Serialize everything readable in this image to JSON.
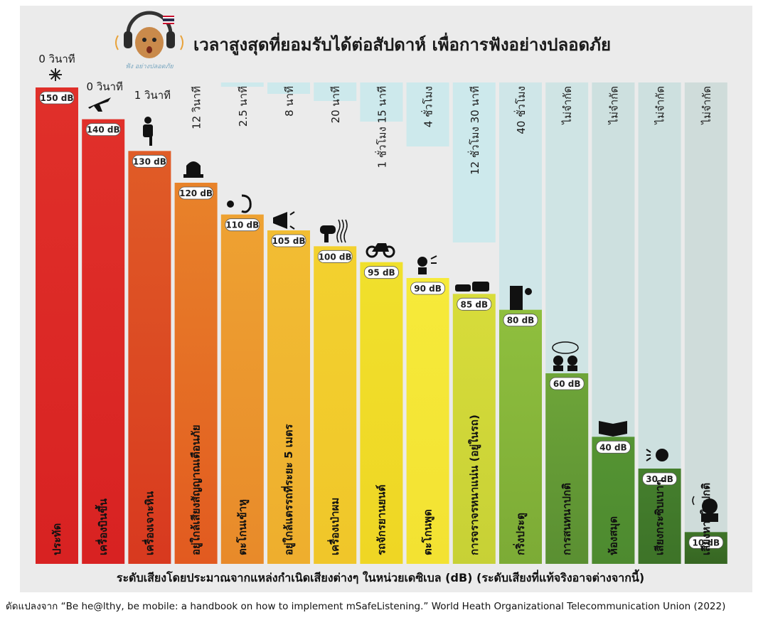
{
  "title": "เวลาสูงสุดที่ยอมรับได้ต่อสัปดาห์ เพื่อการฟังอย่างปลอดภัย",
  "logo_caption": "ฟัง อย่างปลอดภัย",
  "icons": [
    "fireworks-icon",
    "airplane-icon",
    "jackhammer-icon",
    "siren-icon",
    "shout-ear-icon",
    "megaphone-icon",
    "hairdryer-icon",
    "motorcycle-icon",
    "shout-icon",
    "cars-icon",
    "door-bell-icon",
    "two-people-talking-icon",
    "open-book-icon",
    "whisper-icon",
    "breathing-person-icon"
  ],
  "colors": {
    "bar_top": [
      "#e0302a",
      "#e0302a",
      "#e05c27",
      "#e8832a",
      "#eea232",
      "#f2bd33",
      "#f3d12f",
      "#f0e02c",
      "#f6ea3a",
      "#d8dc3a",
      "#8fbf3e",
      "#6ea539",
      "#559433",
      "#457f2d",
      "#3f7429"
    ],
    "bar_bottom": [
      "#d82222",
      "#d82222",
      "#d8391f",
      "#e25a20",
      "#e88a2a",
      "#eeae2e",
      "#f0c62a",
      "#efd624",
      "#f3e232",
      "#c7d136",
      "#7cab36",
      "#5a8f32",
      "#4d8a2f",
      "#3d7328",
      "#366622"
    ],
    "time_block": [
      "#cde9ec",
      "#cde9ec",
      "#cde9ec",
      "#cde9ec",
      "#cde9ec",
      "#cde9ec",
      "#cde9ec",
      "#cde9ec",
      "#cde9ec",
      "#cde9ec",
      "#cfe6e8",
      "#cfe4e4",
      "#cde0df",
      "#cde0df",
      "#cfdcda"
    ]
  },
  "chart_data": {
    "type": "bar",
    "title": "เวลาสูงสุดที่ยอมรับได้ต่อสัปดาห์ เพื่อการฟังอย่างปลอดภัย",
    "xlabel": "ระดับเสียงโดยประมาณจากแหล่งกำเนิดเสียงต่างๆ ในหน่วยเดซิเบล (dB) (ระดับเสียงที่แท้จริงอาจต่างจากนี้)",
    "ylabel": "",
    "ylim": [
      0,
      150
    ],
    "categories": [
      "ประทัด",
      "เครื่องบินขึ้น",
      "เครื่องเจาะหิน",
      "อยู่ใกล้เสียงสัญญาณเตือนภัย",
      "ตะโกนเข้าหู",
      "อยู่ใกล้แตรรถที่ระยะ 5 เมตร",
      "เครื่องเป่าผม",
      "รถจักรยานยนต์",
      "ตะโกนพูด",
      "การจราจรหนาแน่น (อยู่ในรถ)",
      "กริ่งประตู",
      "การสนทนาปกติ",
      "ห้องสมุด",
      "เสียงกระซิบเบาๆ",
      "เสียงหายใจปกติ"
    ],
    "values": [
      150,
      140,
      130,
      120,
      110,
      105,
      100,
      95,
      90,
      85,
      80,
      60,
      40,
      30,
      10
    ],
    "value_labels": [
      "150 dB",
      "140 dB",
      "130 dB",
      "120 dB",
      "110 dB",
      "105 dB",
      "100 dB",
      "95 dB",
      "90 dB",
      "85 dB",
      "80 dB",
      "60 dB",
      "40 dB",
      "30 dB",
      "10 dB"
    ],
    "time_labels": [
      "0 วินาที",
      "0 วินาที",
      "1 วินาที",
      "12 วินาที",
      "2.5 นาที",
      "8 นาที",
      "20 นาที",
      "1 ชั่วโมง 15 นาที",
      "4 ชั่วโมง",
      "12 ชั่วโมง 30 นาที",
      "40 ชั่วโมง",
      "ไม่จำกัด",
      "ไม่จำกัด",
      "ไม่จำกัด",
      "ไม่จำกัด"
    ]
  },
  "footnote": "ดัดแปลงจาก “Be he@lthy, be mobile: a handbook on how to implement mSafeListening.” World Heath Organizational Telecommunication Union (2022)"
}
